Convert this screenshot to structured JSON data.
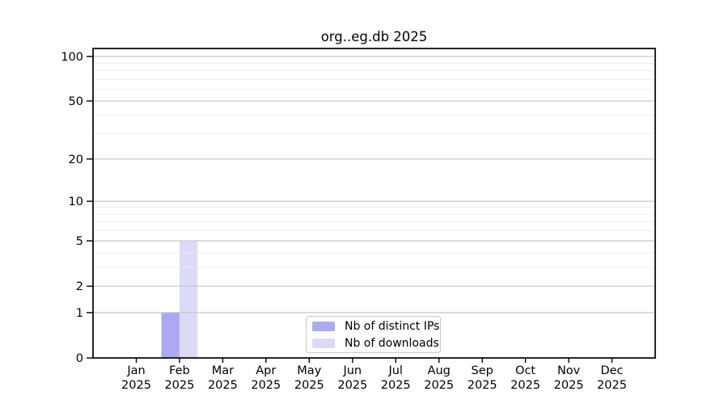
{
  "chart_data": {
    "type": "bar",
    "title": "org..eg.db 2025",
    "categories": [
      "Jan",
      "Feb",
      "Mar",
      "Apr",
      "May",
      "Jun",
      "Jul",
      "Aug",
      "Sep",
      "Oct",
      "Nov",
      "Dec"
    ],
    "x_year": "2025",
    "series": [
      {
        "name": "Nb of distinct IPs",
        "color": "#aaaaf2",
        "values": [
          0,
          1,
          0,
          0,
          0,
          0,
          0,
          0,
          0,
          0,
          0,
          0
        ]
      },
      {
        "name": "Nb of downloads",
        "color": "#dbdbf7",
        "values": [
          0,
          5,
          0,
          0,
          0,
          0,
          0,
          0,
          0,
          0,
          0,
          0
        ]
      }
    ],
    "xlabel": "",
    "ylabel": "",
    "y_scale": "log1p",
    "ylim": [
      0,
      113
    ],
    "y_ticks": [
      0,
      1,
      2,
      5,
      10,
      20,
      50,
      100
    ],
    "y_minor_gridlines": [
      3,
      4,
      6,
      7,
      8,
      9,
      30,
      40,
      60,
      70,
      80,
      90
    ],
    "grid": true,
    "legend_position": "lower center"
  },
  "style": {
    "major_grid_color": "#c6c6c6",
    "minor_grid_color": "#ececec",
    "axis_color": "#000000",
    "text_color": "#000000",
    "background": "#ffffff",
    "legend_border_color": "#c9c9c9"
  }
}
